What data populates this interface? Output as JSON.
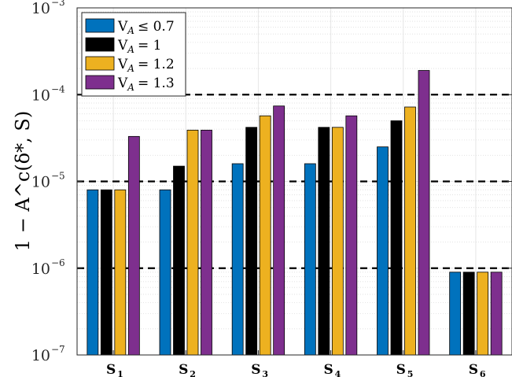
{
  "chart_data": {
    "type": "bar",
    "yscale": "log",
    "ylim": [
      1e-07,
      0.001
    ],
    "ylabel": "1 − A^c(δ*, S)",
    "yticks": [
      {
        "base": "10",
        "exp": "−7"
      },
      {
        "base": "10",
        "exp": "−6"
      },
      {
        "base": "10",
        "exp": "−5"
      },
      {
        "base": "10",
        "exp": "−4"
      },
      {
        "base": "10",
        "exp": "−3"
      }
    ],
    "categories": [
      {
        "main": "S",
        "sub": "1"
      },
      {
        "main": "S",
        "sub": "2"
      },
      {
        "main": "S",
        "sub": "3"
      },
      {
        "main": "S",
        "sub": "4"
      },
      {
        "main": "S",
        "sub": "5"
      },
      {
        "main": "S",
        "sub": "6"
      }
    ],
    "series": [
      {
        "name": "V_A ≤ 0.7",
        "color": "#0072BD",
        "values": [
          8e-06,
          8e-06,
          1.6e-05,
          1.6e-05,
          2.5e-05,
          9e-07
        ]
      },
      {
        "name": "V_A = 1",
        "color": "#000000",
        "values": [
          8e-06,
          1.5e-05,
          4.2e-05,
          4.2e-05,
          5e-05,
          9e-07
        ]
      },
      {
        "name": "V_A = 1.2",
        "color": "#EDB120",
        "values": [
          8e-06,
          3.9e-05,
          5.7e-05,
          4.2e-05,
          7.2e-05,
          9e-07
        ]
      },
      {
        "name": "V_A = 1.3",
        "color": "#7E2F8E",
        "values": [
          3.3e-05,
          3.9e-05,
          7.4e-05,
          5.7e-05,
          0.00019,
          9e-07
        ]
      }
    ],
    "legend": [
      {
        "prefix": "V",
        "sub": "A",
        "rel": "≤ 0.7"
      },
      {
        "prefix": "V",
        "sub": "A",
        "rel": "= 1"
      },
      {
        "prefix": "V",
        "sub": "A",
        "rel": "= 1.2"
      },
      {
        "prefix": "V",
        "sub": "A",
        "rel": "= 1.3"
      }
    ],
    "legend_position": "top-left",
    "reference_lines": [
      1e-06,
      1e-05,
      0.0001
    ],
    "grid": true
  }
}
